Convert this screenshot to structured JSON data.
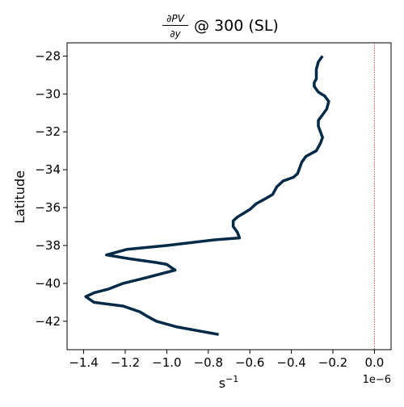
{
  "chart_data": {
    "type": "line",
    "title": {
      "frac_numerator": "∂PV",
      "frac_denominator": "∂y",
      "suffix": "@ 300 (SL)"
    },
    "xlabel": "s",
    "xlabel_exponent": "−1",
    "ylabel": "Latitude",
    "offset_text": "1e−6",
    "xlim": [
      -1.48,
      0.08
    ],
    "ylim": [
      -43.5,
      -27.3
    ],
    "x_ticks": [
      {
        "value": -1.4,
        "label": "−1.4"
      },
      {
        "value": -1.2,
        "label": "−1.2"
      },
      {
        "value": -1.0,
        "label": "−1.0"
      },
      {
        "value": -0.8,
        "label": "−0.8"
      },
      {
        "value": -0.6,
        "label": "−0.6"
      },
      {
        "value": -0.4,
        "label": "−0.4"
      },
      {
        "value": -0.2,
        "label": "−0.2"
      },
      {
        "value": 0.0,
        "label": "0.0"
      }
    ],
    "y_ticks": [
      {
        "value": -28,
        "label": "−28"
      },
      {
        "value": -30,
        "label": "−30"
      },
      {
        "value": -32,
        "label": "−32"
      },
      {
        "value": -34,
        "label": "−34"
      },
      {
        "value": -36,
        "label": "−36"
      },
      {
        "value": -38,
        "label": "−38"
      },
      {
        "value": -40,
        "label": "−40"
      },
      {
        "value": -42,
        "label": "−42"
      }
    ],
    "reference_line": {
      "x": 0.0,
      "color": "#d62728",
      "style": "dotted"
    },
    "series": [
      {
        "name": "dPV/dy",
        "color": "#012a46",
        "points": [
          [
            -0.25,
            -28.0
          ],
          [
            -0.27,
            -28.3
          ],
          [
            -0.28,
            -28.7
          ],
          [
            -0.28,
            -29.2
          ],
          [
            -0.29,
            -29.4
          ],
          [
            -0.29,
            -29.6
          ],
          [
            -0.27,
            -29.9
          ],
          [
            -0.24,
            -30.1
          ],
          [
            -0.22,
            -30.4
          ],
          [
            -0.23,
            -30.8
          ],
          [
            -0.25,
            -31.1
          ],
          [
            -0.27,
            -31.4
          ],
          [
            -0.27,
            -31.7
          ],
          [
            -0.26,
            -32.0
          ],
          [
            -0.25,
            -32.3
          ],
          [
            -0.26,
            -32.6
          ],
          [
            -0.28,
            -33.0
          ],
          [
            -0.33,
            -33.3
          ],
          [
            -0.35,
            -33.6
          ],
          [
            -0.36,
            -33.9
          ],
          [
            -0.37,
            -34.2
          ],
          [
            -0.39,
            -34.4
          ],
          [
            -0.44,
            -34.6
          ],
          [
            -0.47,
            -34.9
          ],
          [
            -0.49,
            -35.3
          ],
          [
            -0.52,
            -35.5
          ],
          [
            -0.57,
            -35.8
          ],
          [
            -0.6,
            -36.1
          ],
          [
            -0.63,
            -36.3
          ],
          [
            -0.66,
            -36.5
          ],
          [
            -0.68,
            -36.7
          ],
          [
            -0.68,
            -37.0
          ],
          [
            -0.66,
            -37.3
          ],
          [
            -0.65,
            -37.6
          ],
          [
            -0.77,
            -37.7
          ],
          [
            -1.0,
            -38.0
          ],
          [
            -1.19,
            -38.2
          ],
          [
            -1.29,
            -38.5
          ],
          [
            -1.18,
            -38.7
          ],
          [
            -1.05,
            -38.9
          ],
          [
            -1.0,
            -39.0
          ],
          [
            -0.96,
            -39.3
          ],
          [
            -1.1,
            -39.7
          ],
          [
            -1.21,
            -40.0
          ],
          [
            -1.28,
            -40.3
          ],
          [
            -1.35,
            -40.5
          ],
          [
            -1.39,
            -40.7
          ],
          [
            -1.35,
            -41.0
          ],
          [
            -1.21,
            -41.2
          ],
          [
            -1.13,
            -41.5
          ],
          [
            -1.1,
            -41.7
          ],
          [
            -1.05,
            -42.0
          ],
          [
            -0.95,
            -42.3
          ],
          [
            -0.75,
            -42.7
          ]
        ]
      }
    ]
  }
}
